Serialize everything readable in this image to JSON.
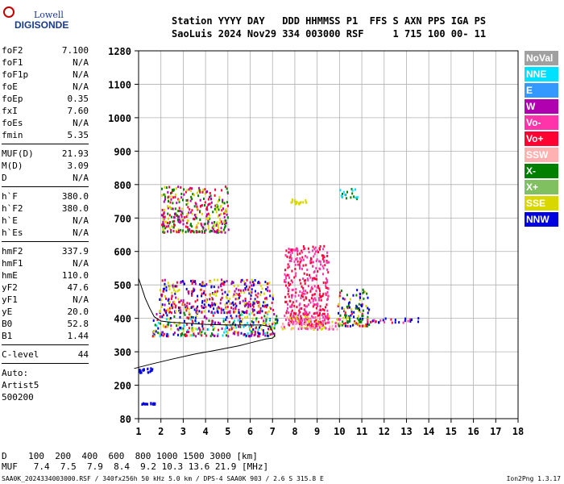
{
  "logo": {
    "line1": "Lowell",
    "line2": "DIGISONDE"
  },
  "header": {
    "line1": "Station YYYY DAY   DDD HHMMSS P1  FFS S AXN PPS IGA PS",
    "line2": "SaoLuis 2024 Nov29 334 003000 RSF     1 715 100 00- 11"
  },
  "params": {
    "group1": [
      {
        "label": "foF2",
        "value": "7.100"
      },
      {
        "label": "foF1",
        "value": "N/A"
      },
      {
        "label": "foF1p",
        "value": "N/A"
      },
      {
        "label": "foE",
        "value": "N/A"
      },
      {
        "label": "foEp",
        "value": "0.35"
      },
      {
        "label": "fxI",
        "value": "7.60"
      },
      {
        "label": "foEs",
        "value": "N/A"
      },
      {
        "label": "fmin",
        "value": "5.35"
      }
    ],
    "group2": [
      {
        "label": "MUF(D)",
        "value": "21.93"
      },
      {
        "label": "M(D)",
        "value": "3.09"
      },
      {
        "label": "D",
        "value": "N/A"
      }
    ],
    "group3": [
      {
        "label": "h`F",
        "value": "380.0"
      },
      {
        "label": "h`F2",
        "value": "380.0"
      },
      {
        "label": "h`E",
        "value": "N/A"
      },
      {
        "label": "h`Es",
        "value": "N/A"
      }
    ],
    "group4": [
      {
        "label": "hmF2",
        "value": "337.9"
      },
      {
        "label": "hmF1",
        "value": "N/A"
      },
      {
        "label": "hmE",
        "value": "110.0"
      },
      {
        "label": "yF2",
        "value": "47.6"
      },
      {
        "label": "yF1",
        "value": "N/A"
      },
      {
        "label": "yE",
        "value": "20.0"
      },
      {
        "label": "B0",
        "value": "52.8"
      },
      {
        "label": "B1",
        "value": "1.44"
      }
    ],
    "group5": [
      {
        "label": "C-level",
        "value": "44"
      }
    ],
    "auto": [
      "Auto:",
      "Artist5",
      "500200"
    ]
  },
  "legend": [
    {
      "label": "NoVal",
      "color": "#a0a0a0"
    },
    {
      "label": "NNE",
      "color": "#00e0ff"
    },
    {
      "label": "E",
      "color": "#3399ff"
    },
    {
      "label": "W",
      "color": "#b000b0"
    },
    {
      "label": "Vo-",
      "color": "#ff33aa"
    },
    {
      "label": "Vo+",
      "color": "#ff0033"
    },
    {
      "label": "SSW",
      "color": "#ffb0b0"
    },
    {
      "label": "X-",
      "color": "#008000"
    },
    {
      "label": "X+",
      "color": "#80c060"
    },
    {
      "label": "SSE",
      "color": "#d8d800"
    },
    {
      "label": "NNW",
      "color": "#0000e0"
    }
  ],
  "bottom": {
    "line1": "D    100  200  400  600  800 1000 1500 3000 [km]",
    "line2": "MUF   7.4  7.5  7.9  8.4  9.2 10.3 13.6 21.9 [MHz]"
  },
  "footer": {
    "left": "SAA0K_2024334003000.RSF / 340fx256h 50 kHz 5.0 km / DPS-4 SAA0K 903 / 2.6 S 315.8 E",
    "right": "Ion2Png 1.3.17"
  },
  "chart_data": {
    "type": "scatter",
    "x_ticks": [
      1,
      2,
      3,
      4,
      5,
      6,
      7,
      8,
      9,
      10,
      11,
      12,
      13,
      14,
      15,
      16,
      17,
      18
    ],
    "y_ticks": [
      80,
      200,
      300,
      400,
      500,
      600,
      700,
      800,
      900,
      1000,
      1100,
      1280
    ],
    "xlim": [
      1,
      18
    ],
    "ylim": [
      80,
      1280
    ],
    "grid": true,
    "profile": {
      "x": [
        0.8,
        1.5,
        2.5,
        3.5,
        4.5,
        5.5,
        6.2,
        6.7,
        7.0,
        7.1,
        6.9,
        6.5,
        6.0,
        5.5,
        5.0,
        4.5,
        4.0,
        3.5,
        3.0,
        2.5,
        2.0,
        1.7,
        1.5,
        1.3,
        1.0
      ],
      "y": [
        250,
        262,
        278,
        293,
        305,
        318,
        330,
        338,
        341,
        347,
        375,
        380,
        380,
        380,
        380,
        381,
        382,
        384,
        386,
        388,
        392,
        405,
        430,
        460,
        520
      ]
    },
    "echo_regions": [
      {
        "x": [
          1.6,
          7.2
        ],
        "y": [
          350,
          420
        ],
        "colors": [
          "#ff0033",
          "#0000e0",
          "#d8d800",
          "#b000b0",
          "#008000",
          "#00e0ff"
        ]
      },
      {
        "x": [
          1.9,
          7.0
        ],
        "y": [
          420,
          520
        ],
        "colors": [
          "#0000e0",
          "#d8d800",
          "#b000b0",
          "#ff0033"
        ]
      },
      {
        "x": [
          7.5,
          9.5
        ],
        "y": [
          380,
          620
        ],
        "colors": [
          "#ff0033",
          "#ff33aa"
        ]
      },
      {
        "x": [
          7.3,
          10.0
        ],
        "y": [
          370,
          410
        ],
        "colors": [
          "#d8d800",
          "#ffb0b0",
          "#ff33aa"
        ]
      },
      {
        "x": [
          9.9,
          11.3
        ],
        "y": [
          380,
          490
        ],
        "colors": [
          "#008000",
          "#ff0033",
          "#d8d800",
          "#0000e0"
        ]
      },
      {
        "x": [
          11.2,
          13.5
        ],
        "y": [
          390,
          405
        ],
        "colors": [
          "#ff0033",
          "#ff33aa",
          "#0000e0"
        ]
      },
      {
        "x": [
          2.0,
          5.0
        ],
        "y": [
          660,
          800
        ],
        "colors": [
          "#d8d800",
          "#ff0033",
          "#008000",
          "#b000b0"
        ]
      },
      {
        "x": [
          1.0,
          1.6
        ],
        "y": [
          240,
          255
        ],
        "colors": [
          "#0000e0"
        ]
      },
      {
        "x": [
          1.1,
          1.7
        ],
        "y": [
          135,
          140
        ],
        "colors": [
          "#0000e0"
        ]
      },
      {
        "x": [
          10.0,
          10.8
        ],
        "y": [
          760,
          790
        ],
        "colors": [
          "#008000",
          "#00e0ff"
        ]
      },
      {
        "x": [
          7.8,
          8.5
        ],
        "y": [
          745,
          760
        ],
        "colors": [
          "#d8d800"
        ]
      }
    ]
  }
}
